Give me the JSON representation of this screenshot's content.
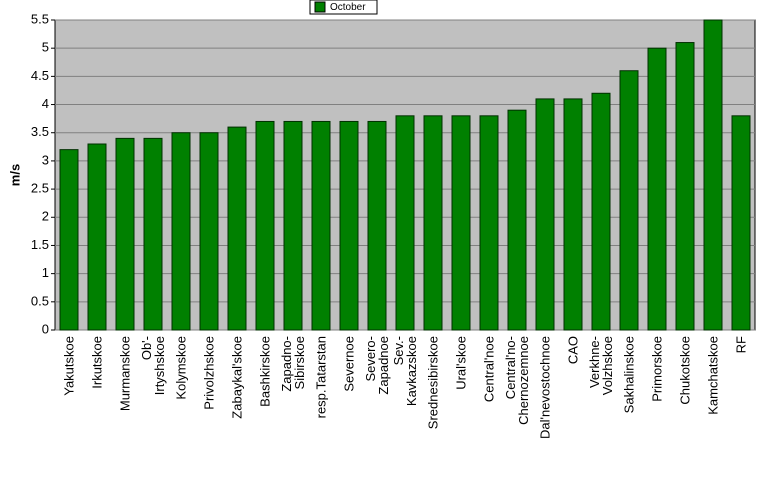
{
  "chart_data": {
    "type": "bar",
    "ylabel": "m/s",
    "legend": "top",
    "grid": true,
    "color": "#008000",
    "series": [
      {
        "name": "October",
        "color": "#008000",
        "values": [
          3.2,
          3.3,
          3.4,
          3.4,
          3.5,
          3.5,
          3.6,
          3.7,
          3.7,
          3.7,
          3.7,
          3.7,
          3.8,
          3.8,
          3.8,
          3.8,
          3.9,
          4.1,
          4.1,
          4.2,
          4.6,
          5.0,
          5.1,
          5.5,
          3.8
        ]
      }
    ],
    "categories": [
      "Yakutskoe",
      "Irkutskoe",
      "Murmanskoe",
      "Ob'-\nIrtyshskoe",
      "Kolymskoe",
      "Privolzhskoe",
      "Zabaykal'skoe",
      "Bashkirskoe",
      "Zapadno-\nSibirskoe",
      "resp.Tatarstan",
      "Severnoe",
      "Severo-\nZapadnoe",
      "Sev.-\nKavkazskoe",
      "Srednesibirskoe",
      "Ural'skoe",
      "Central'noe",
      "Central'no-\nChernozemnoe",
      "Dal'nevostochnoe",
      "CAO",
      "Verkhne-\nVolzhskoe",
      "Sakhalinskoe",
      "Primorskoe",
      "Chukotskoe",
      "Kamchatskoe",
      "RF"
    ],
    "ylim": [
      0,
      5.5
    ],
    "yticks": [
      0,
      0.5,
      1,
      1.5,
      2,
      2.5,
      3,
      3.5,
      4,
      4.5,
      5,
      5.5
    ]
  }
}
